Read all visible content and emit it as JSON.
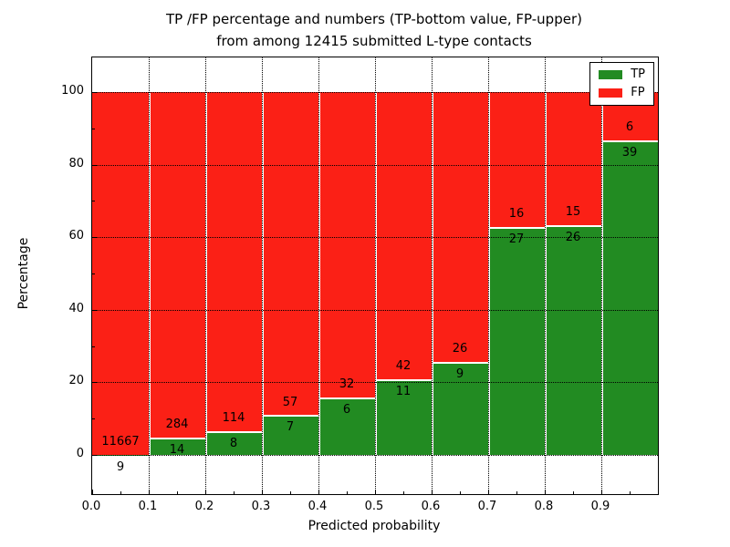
{
  "title": {
    "line1": "TP /FP percentage and numbers (TP-bottom value, FP-upper)",
    "line2": "from among 12415 submitted L-type contacts"
  },
  "axes": {
    "xlabel": "Predicted probability",
    "ylabel": "Percentage",
    "xticks": [
      "0.0",
      "0.1",
      "0.2",
      "0.3",
      "0.4",
      "0.5",
      "0.6",
      "0.7",
      "0.8",
      "0.9"
    ],
    "yticks": [
      "0",
      "20",
      "40",
      "60",
      "80",
      "100"
    ],
    "xlim": [
      0.0,
      1.0
    ],
    "ylim": [
      -11,
      110
    ],
    "grid": "dotted"
  },
  "legend": {
    "position": "upper right",
    "items": [
      {
        "label": "TP",
        "color": "#228b22"
      },
      {
        "label": "FP",
        "color": "#fb2016"
      }
    ]
  },
  "chart_data": {
    "type": "bar",
    "stacked": true,
    "normalized_to": 100,
    "title": "TP /FP percentage and numbers (TP-bottom value, FP-upper) from among 12415 submitted L-type contacts",
    "xlabel": "Predicted probability",
    "ylabel": "Percentage",
    "total_contacts": 12415,
    "bins": [
      "0.0-0.1",
      "0.1-0.2",
      "0.2-0.3",
      "0.3-0.4",
      "0.4-0.5",
      "0.5-0.6",
      "0.6-0.7",
      "0.7-0.8",
      "0.8-0.9",
      "0.9-1.0"
    ],
    "series": [
      {
        "name": "TP",
        "color": "#228b22",
        "counts": [
          9,
          14,
          8,
          7,
          6,
          11,
          9,
          27,
          26,
          39
        ]
      },
      {
        "name": "FP",
        "color": "#fb2016",
        "counts": [
          11667,
          284,
          114,
          57,
          32,
          42,
          26,
          16,
          15,
          6
        ]
      }
    ],
    "tp_percent": [
      0.08,
      4.7,
      6.56,
      10.94,
      15.79,
      20.75,
      25.71,
      62.79,
      63.41,
      86.67
    ],
    "legend_position": "upper right"
  },
  "colors": {
    "tp": "#228b22",
    "fp": "#fb2016",
    "bar_edge": "#ffffff",
    "grid": "#000000",
    "background": "#ffffff",
    "text": "#000000"
  }
}
